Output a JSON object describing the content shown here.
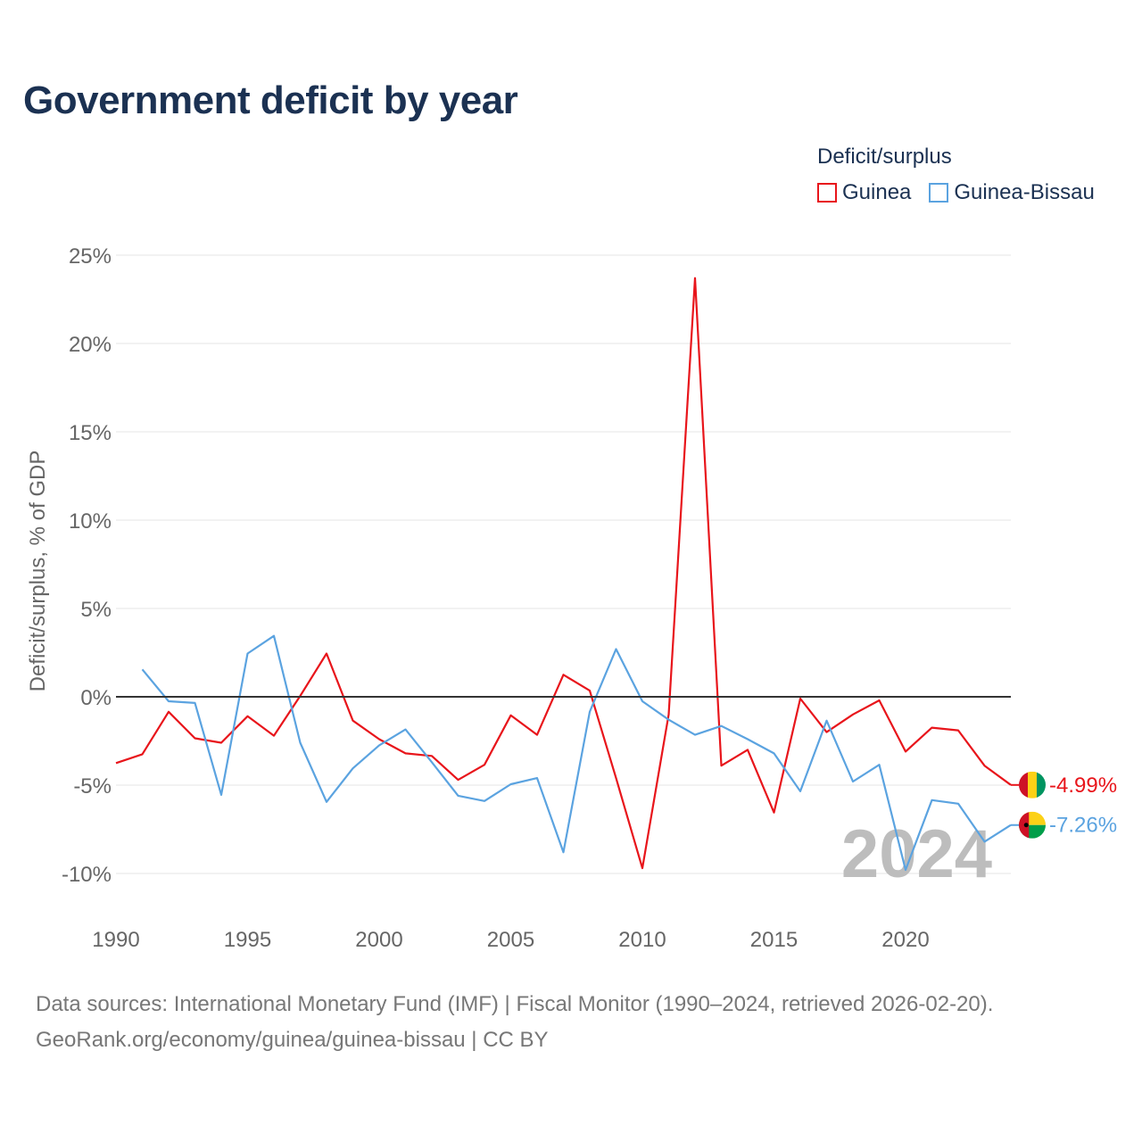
{
  "title": "Government deficit by year",
  "legend": {
    "title": "Deficit/surplus",
    "items": [
      {
        "label": "Guinea",
        "color": "#e8151b"
      },
      {
        "label": "Guinea-Bissau",
        "color": "#5ba3e0"
      }
    ]
  },
  "source": {
    "line1": "Data sources: International Monetary Fund (IMF) | Fiscal Monitor (1990–2024, retrieved 2026-02-20).",
    "line2": "GeoRank.org/economy/guinea/guinea-bissau | CC BY"
  },
  "chart_data": {
    "type": "line",
    "title": "Government deficit by year",
    "xlabel": "",
    "ylabel": "Deficit/surplus, % of GDP",
    "xlim": [
      1990,
      2024
    ],
    "ylim": [
      -12.5,
      25
    ],
    "x_ticks": [
      1990,
      1995,
      2000,
      2005,
      2010,
      2015,
      2020
    ],
    "y_ticks": [
      25,
      20,
      15,
      10,
      5,
      0,
      -5,
      -10
    ],
    "y_tick_labels": [
      "25%",
      "20%",
      "15%",
      "10%",
      "5%",
      "0%",
      "-5%",
      "-10%"
    ],
    "year_label": "2024",
    "series": [
      {
        "name": "Guinea",
        "color": "#e8151b",
        "end_label": "-4.99%",
        "x": [
          1990,
          1991,
          1992,
          1993,
          1994,
          1995,
          1996,
          1997,
          1998,
          1999,
          2000,
          2001,
          2002,
          2003,
          2004,
          2005,
          2006,
          2007,
          2008,
          2009,
          2010,
          2011,
          2012,
          2013,
          2014,
          2015,
          2016,
          2017,
          2018,
          2019,
          2020,
          2021,
          2022,
          2023,
          2024
        ],
        "values": [
          -3.75,
          -3.25,
          -0.85,
          -2.35,
          -2.6,
          -1.1,
          -2.2,
          0.05,
          2.45,
          -1.35,
          -2.4,
          -3.2,
          -3.35,
          -4.7,
          -3.85,
          -1.05,
          -2.15,
          1.25,
          0.35,
          -4.6,
          -9.7,
          -1.0,
          23.7,
          -3.9,
          -3.0,
          -6.55,
          -0.1,
          -2.0,
          -1.0,
          -0.2,
          -3.1,
          -1.75,
          -1.9,
          -3.9,
          -4.99
        ]
      },
      {
        "name": "Guinea-Bissau",
        "color": "#5ba3e0",
        "end_label": "-7.26%",
        "x": [
          1991,
          1992,
          1993,
          1994,
          1995,
          1996,
          1997,
          1998,
          1999,
          2000,
          2001,
          2002,
          2003,
          2004,
          2005,
          2006,
          2007,
          2008,
          2009,
          2010,
          2011,
          2012,
          2013,
          2014,
          2015,
          2016,
          2017,
          2018,
          2019,
          2020,
          2021,
          2022,
          2023,
          2024
        ],
        "values": [
          1.55,
          -0.25,
          -0.35,
          -5.55,
          2.45,
          3.45,
          -2.6,
          -5.95,
          -4.05,
          -2.75,
          -1.85,
          -3.7,
          -5.6,
          -5.9,
          -4.95,
          -4.6,
          -8.8,
          -0.85,
          2.7,
          -0.25,
          -1.3,
          -2.15,
          -1.65,
          -2.4,
          -3.2,
          -5.35,
          -1.35,
          -4.8,
          -3.85,
          -9.8,
          -5.85,
          -6.05,
          -8.2,
          -7.26
        ]
      }
    ]
  }
}
